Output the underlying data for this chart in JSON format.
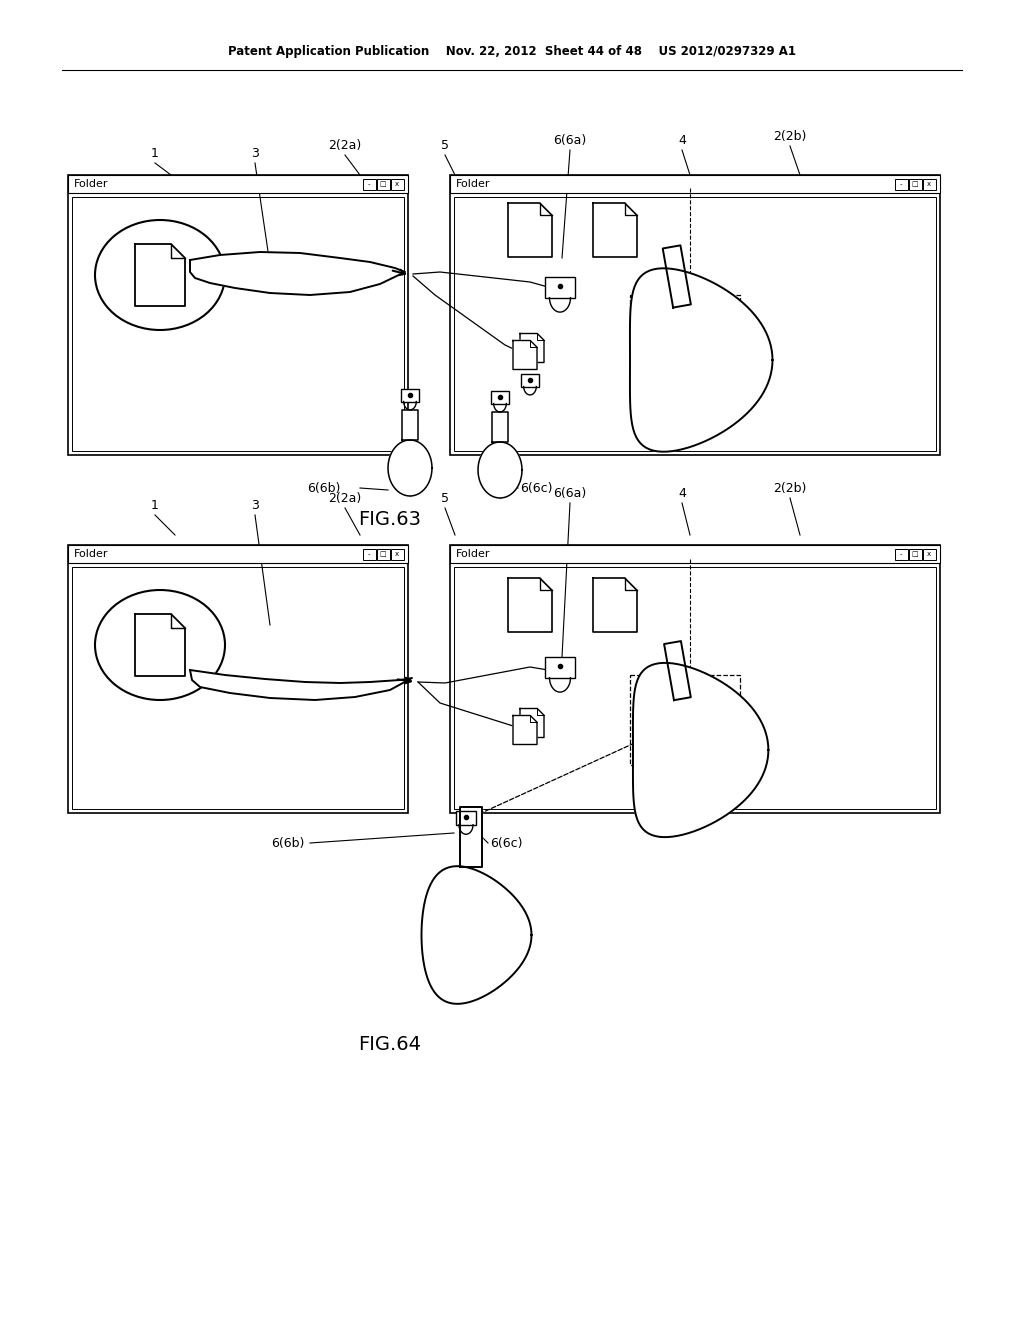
{
  "header": "Patent Application Publication    Nov. 22, 2012  Sheet 44 of 48    US 2012/0297329 A1",
  "fig63_label": "FIG.63",
  "fig64_label": "FIG.64",
  "bg_color": "#ffffff"
}
